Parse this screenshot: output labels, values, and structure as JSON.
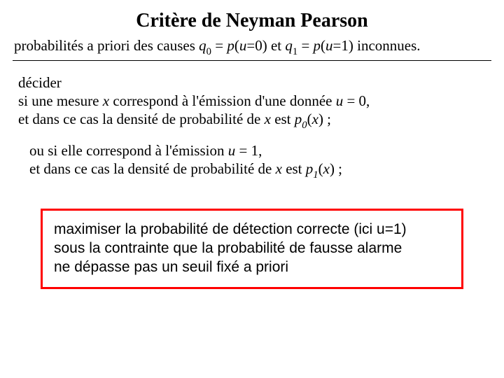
{
  "colors": {
    "background": "#ffffff",
    "text": "#000000",
    "box_border": "#ff0000",
    "underline": "#000000"
  },
  "typography": {
    "serif_family": "Times New Roman",
    "sans_family": "Arial",
    "title_fontsize_pt": 28,
    "title_weight": "bold",
    "body_fontsize_pt": 21,
    "box_fontsize_pt": 21
  },
  "title": "Critère de Neyman Pearson",
  "subtitle": {
    "t1": "probabilités a priori des causes ",
    "q0": "q",
    "q0_sub": "0",
    "eq1_a": " = ",
    "p_open": "p",
    "pu0_arg": "(",
    "u_var": "u",
    "pu0_arg2": "=0)",
    "t2": " et ",
    "q1": "q",
    "q1_sub": "1",
    "eq2_a": " =  ",
    "p_open2": "p",
    "pu1_arg": "(",
    "u_var2": "u",
    "pu1_arg2": "=1)",
    "t3": " inconnues."
  },
  "block1": {
    "l1": "décider",
    "l2a": "si une mesure ",
    "x_var": "x",
    "l2b": " correspond à l'émission d'une donnée ",
    "u_var": "u",
    "l2c": " = 0,",
    "l3a": "et dans ce cas la densité de probabilité de ",
    "x_var2": "x",
    "l3b": " est ",
    "p0": "p",
    "p0_sub": "0",
    "l3c": "(",
    "x_var3": "x",
    "l3d": ") ;"
  },
  "block2": {
    "l1a": "ou si elle correspond à l'émission  ",
    "u_var": "u",
    "l1b": " = 1,",
    "l2a": "et dans ce cas la densité de probabilité de ",
    "x_var": "x",
    "l2b": " est ",
    "p1": "p",
    "p1_sub": "1",
    "l2c": "(",
    "x_var2": "x",
    "l2d": ") ;"
  },
  "redbox": {
    "l1": "maximiser la probabilité de détection correcte (ici u=1)",
    "l2": "sous la contrainte que la probabilité de fausse alarme",
    "l3": "ne dépasse pas un seuil fixé a priori"
  }
}
